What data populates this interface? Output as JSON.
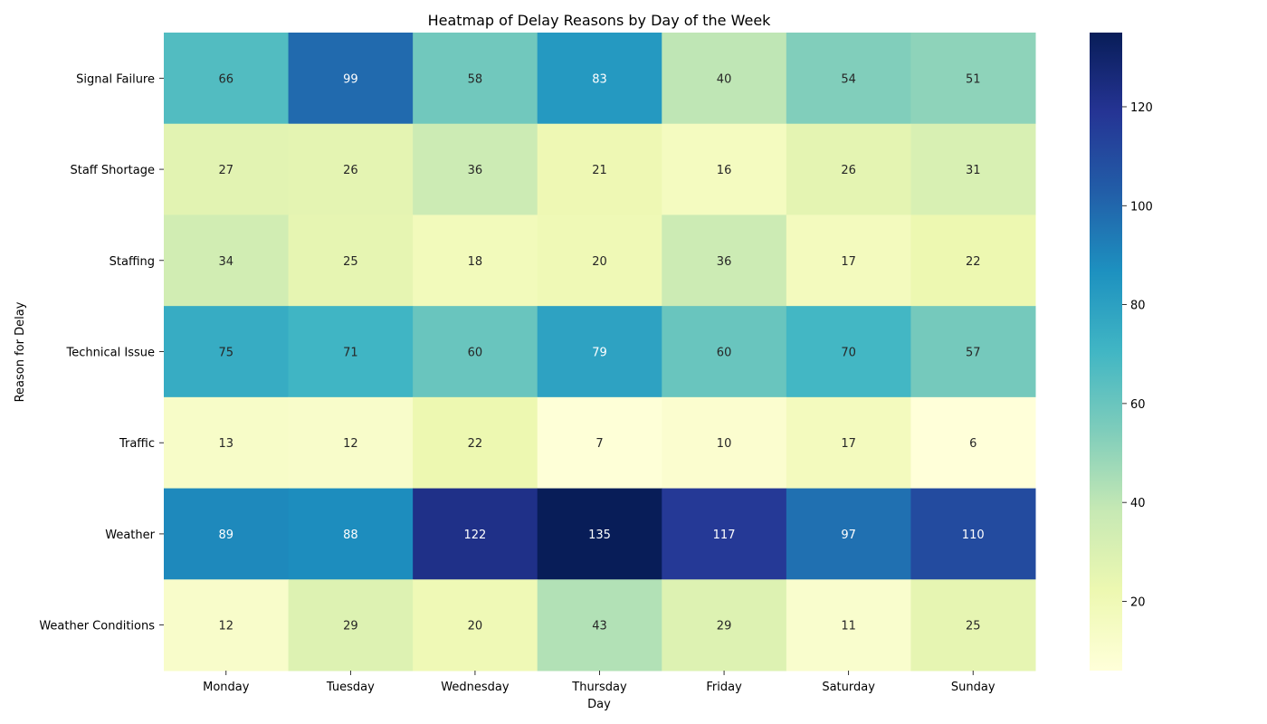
{
  "chart_data": {
    "type": "heatmap",
    "title": "Heatmap of Delay Reasons by Day of the Week",
    "xlabel": "Day",
    "ylabel": "Reason for Delay",
    "columns": [
      "Monday",
      "Tuesday",
      "Wednesday",
      "Thursday",
      "Friday",
      "Saturday",
      "Sunday"
    ],
    "rows": [
      "Signal Failure",
      "Staff Shortage",
      "Staffing",
      "Technical Issue",
      "Traffic",
      "Weather",
      "Weather Conditions"
    ],
    "values": [
      [
        66,
        99,
        58,
        83,
        40,
        54,
        51
      ],
      [
        27,
        26,
        36,
        21,
        16,
        26,
        31
      ],
      [
        34,
        25,
        18,
        20,
        36,
        17,
        22
      ],
      [
        75,
        71,
        60,
        79,
        60,
        70,
        57
      ],
      [
        13,
        12,
        22,
        7,
        10,
        17,
        6
      ],
      [
        89,
        88,
        122,
        135,
        117,
        97,
        110
      ],
      [
        12,
        29,
        20,
        43,
        29,
        11,
        25
      ]
    ],
    "colormap": "YlGnBu",
    "vmin": 6,
    "vmax": 135,
    "colorbar_ticks": [
      20,
      40,
      60,
      80,
      100,
      120
    ],
    "annotations": true
  }
}
